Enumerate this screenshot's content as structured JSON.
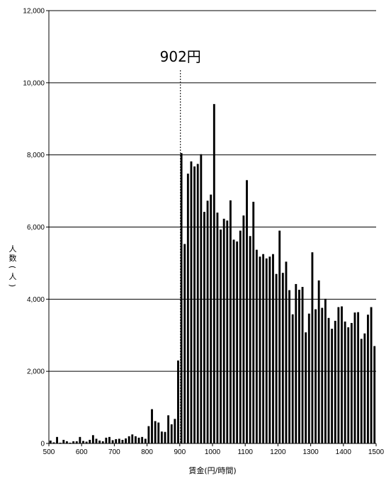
{
  "chart_data": {
    "type": "bar",
    "xlabel": "賃金(円/時間)",
    "ylabel": "人数(人)",
    "xlim": [
      500,
      1500
    ],
    "ylim": [
      0,
      12000
    ],
    "x_ticks": [
      500,
      600,
      700,
      800,
      900,
      1000,
      1100,
      1200,
      1300,
      1400,
      1500
    ],
    "y_ticks": [
      0,
      2000,
      4000,
      6000,
      8000,
      10000,
      12000
    ],
    "x_tick_labels": [
      "500",
      "600",
      "700",
      "800",
      "900",
      "1000",
      "1100",
      "1200",
      "1300",
      "1400",
      "1500"
    ],
    "y_tick_labels": [
      "0",
      "2,000",
      "4,000",
      "6,000",
      "8,000",
      "10,000",
      "12,000"
    ],
    "grid": "horizontal",
    "bar_color": "#000000",
    "annotation": {
      "text": "902円",
      "x": 902,
      "line_top_value": 10350
    },
    "x": [
      500,
      510,
      520,
      530,
      540,
      550,
      560,
      570,
      580,
      590,
      600,
      610,
      620,
      630,
      640,
      650,
      660,
      670,
      680,
      690,
      700,
      710,
      720,
      730,
      740,
      750,
      760,
      770,
      780,
      790,
      800,
      810,
      820,
      830,
      840,
      850,
      860,
      870,
      880,
      890,
      900,
      910,
      920,
      930,
      940,
      950,
      960,
      970,
      980,
      990,
      1000,
      1010,
      1020,
      1030,
      1040,
      1050,
      1060,
      1070,
      1080,
      1090,
      1100,
      1110,
      1120,
      1130,
      1140,
      1150,
      1160,
      1170,
      1180,
      1190,
      1200,
      1210,
      1220,
      1230,
      1240,
      1250,
      1260,
      1270,
      1280,
      1290,
      1300,
      1310,
      1320,
      1330,
      1340,
      1350,
      1360,
      1370,
      1380,
      1390,
      1400,
      1410,
      1420,
      1430,
      1440,
      1450,
      1460,
      1470,
      1480,
      1490
    ],
    "values": [
      80,
      30,
      180,
      20,
      100,
      60,
      20,
      60,
      60,
      180,
      70,
      50,
      100,
      230,
      130,
      80,
      60,
      160,
      180,
      90,
      120,
      130,
      100,
      140,
      200,
      250,
      200,
      160,
      180,
      130,
      480,
      950,
      620,
      580,
      330,
      320,
      780,
      530,
      680,
      2300,
      8050,
      5530,
      7480,
      7820,
      7680,
      7750,
      8020,
      6420,
      6730,
      6900,
      9410,
      6400,
      5930,
      6230,
      6180,
      6740,
      5650,
      5600,
      5900,
      6320,
      7300,
      5750,
      6700,
      5370,
      5180,
      5250,
      5130,
      5180,
      5250,
      4700,
      5900,
      4730,
      5040,
      4250,
      3580,
      4420,
      4260,
      4340,
      3080,
      3600,
      5300,
      3720,
      4520,
      3760,
      4010,
      3480,
      3180,
      3400,
      3780,
      3800,
      3380,
      3220,
      3340,
      3630,
      3640,
      2900,
      3050,
      3570,
      3780,
      2700
    ]
  }
}
